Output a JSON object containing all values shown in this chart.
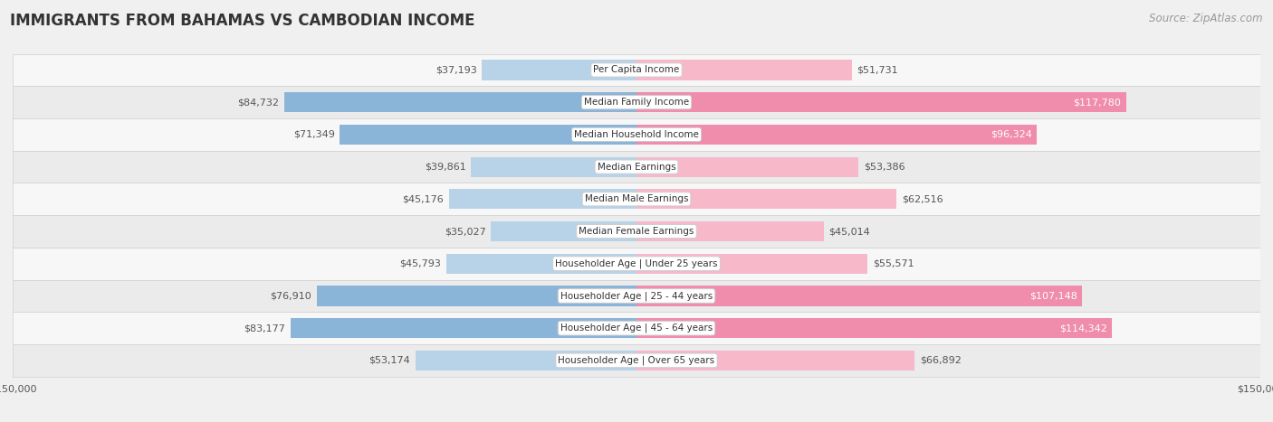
{
  "title": "IMMIGRANTS FROM BAHAMAS VS CAMBODIAN INCOME",
  "source": "Source: ZipAtlas.com",
  "categories": [
    "Per Capita Income",
    "Median Family Income",
    "Median Household Income",
    "Median Earnings",
    "Median Male Earnings",
    "Median Female Earnings",
    "Householder Age | Under 25 years",
    "Householder Age | 25 - 44 years",
    "Householder Age | 45 - 64 years",
    "Householder Age | Over 65 years"
  ],
  "bahamas_values": [
    37193,
    84732,
    71349,
    39861,
    45176,
    35027,
    45793,
    76910,
    83177,
    53174
  ],
  "cambodian_values": [
    51731,
    117780,
    96324,
    53386,
    62516,
    45014,
    55571,
    107148,
    114342,
    66892
  ],
  "bahamas_color": "#8ab4d8",
  "cambodian_color": "#f08cac",
  "bahamas_color_light": "#b8d3e8",
  "cambodian_color_light": "#f7b8ca",
  "max_value": 150000,
  "title_fontsize": 12,
  "source_fontsize": 8.5,
  "value_fontsize": 8,
  "category_fontsize": 7.5,
  "legend_fontsize": 9,
  "axis_label_fontsize": 8,
  "white_label_threshold": 90000,
  "row_colors": [
    "#f7f7f7",
    "#ebebeb"
  ]
}
